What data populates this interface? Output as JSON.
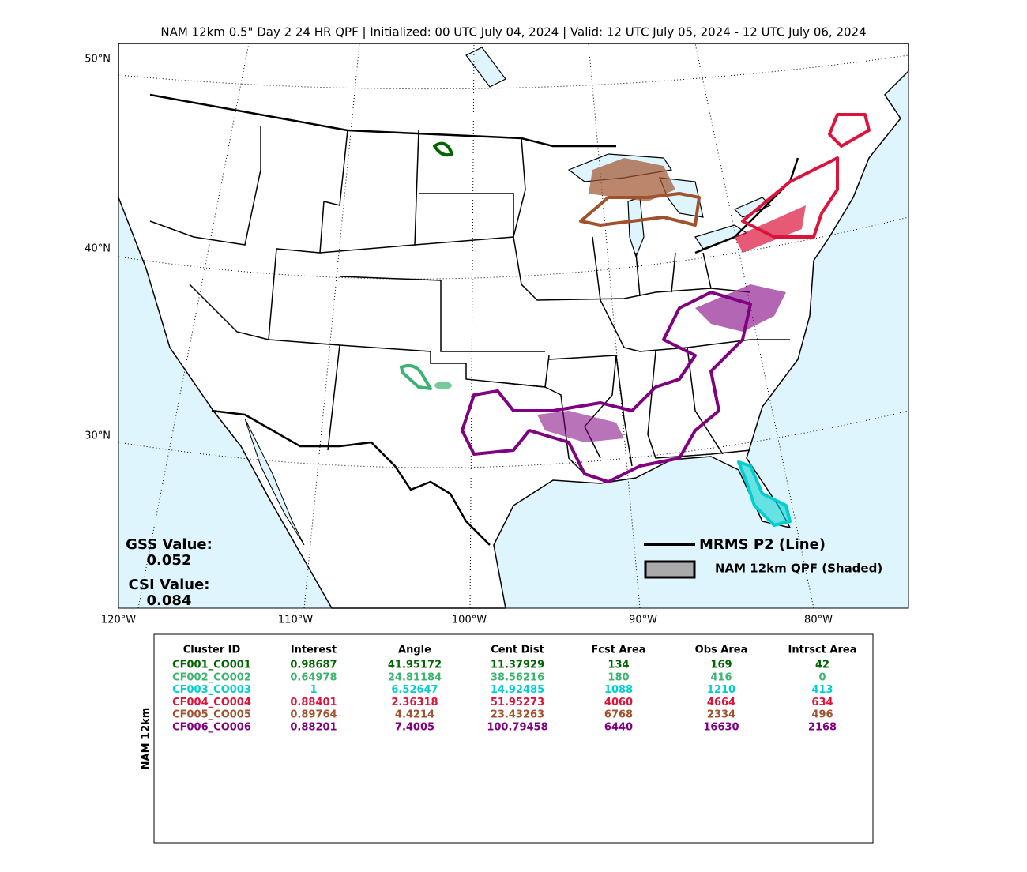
{
  "title": "NAM 12km 0.5\" Day 2 24 HR QPF | Initialized: 00 UTC July 04, 2024 | Valid: 12 UTC July 05, 2024 - 12 UTC July 06, 2024",
  "map": {
    "lat_labels": [
      "50°N",
      "40°N",
      "30°N"
    ],
    "lon_labels": [
      "120°W",
      "110°W",
      "100°W",
      "90°W",
      "80°W"
    ],
    "gss_label": "GSS Value:",
    "gss_value": "0.052",
    "csi_label": "CSI Value:",
    "csi_value": "0.084",
    "legend": {
      "line": "MRMS P2 (Line)",
      "shaded": "NAM 12km QPF (Shaded)"
    }
  },
  "table": {
    "side_label": "NAM 12km",
    "headers": [
      "Cluster ID",
      "Interest",
      "Angle",
      "Cent Dist",
      "Fcst Area",
      "Obs Area",
      "Intrsct Area"
    ],
    "rows": [
      {
        "color": "#006400",
        "cells": [
          "CF001_CO001",
          "0.98687",
          "41.95172",
          "11.37929",
          "134",
          "169",
          "42"
        ]
      },
      {
        "color": "#3cb371",
        "cells": [
          "CF002_CO002",
          "0.64978",
          "24.81184",
          "38.56216",
          "180",
          "416",
          "0"
        ]
      },
      {
        "color": "#00ced1",
        "cells": [
          "CF003_CO003",
          "1",
          "6.52647",
          "14.92485",
          "1088",
          "1210",
          "413"
        ]
      },
      {
        "color": "#dc143c",
        "cells": [
          "CF004_CO004",
          "0.88401",
          "2.36318",
          "51.95273",
          "4060",
          "4664",
          "634"
        ]
      },
      {
        "color": "#a0522d",
        "cells": [
          "CF005_CO005",
          "0.89764",
          "4.4214",
          "23.43263",
          "6768",
          "2334",
          "496"
        ]
      },
      {
        "color": "#800080",
        "cells": [
          "CF006_CO006",
          "0.88201",
          "7.4005",
          "100.79458",
          "6440",
          "16630",
          "2168"
        ]
      }
    ]
  }
}
